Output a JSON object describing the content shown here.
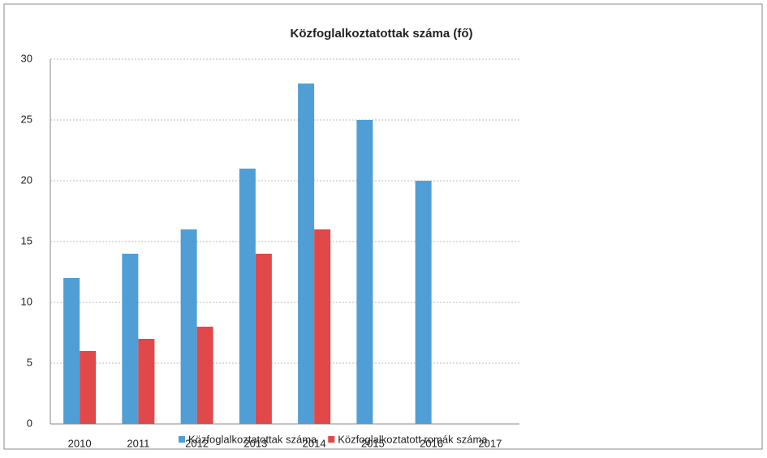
{
  "chart_data": {
    "type": "bar",
    "title": "Közfoglalkoztatottak száma (fő)",
    "categories": [
      "2010",
      "2011",
      "2012",
      "2013",
      "2014",
      "2015",
      "2016",
      "2017"
    ],
    "series": [
      {
        "name": "Közfoglalkoztatottak száma",
        "color": "#4f9fd6",
        "values": [
          12,
          14,
          16,
          21,
          28,
          25,
          20,
          null
        ]
      },
      {
        "name": "Közfoglalkoztatott romák száma",
        "color": "#e0484a",
        "values": [
          6,
          7,
          8,
          14,
          16,
          null,
          null,
          null
        ]
      }
    ],
    "ylim": [
      0,
      30
    ],
    "yticks": [
      0,
      5,
      10,
      15,
      20,
      25,
      30
    ],
    "grid": true,
    "legend": "bottom"
  }
}
